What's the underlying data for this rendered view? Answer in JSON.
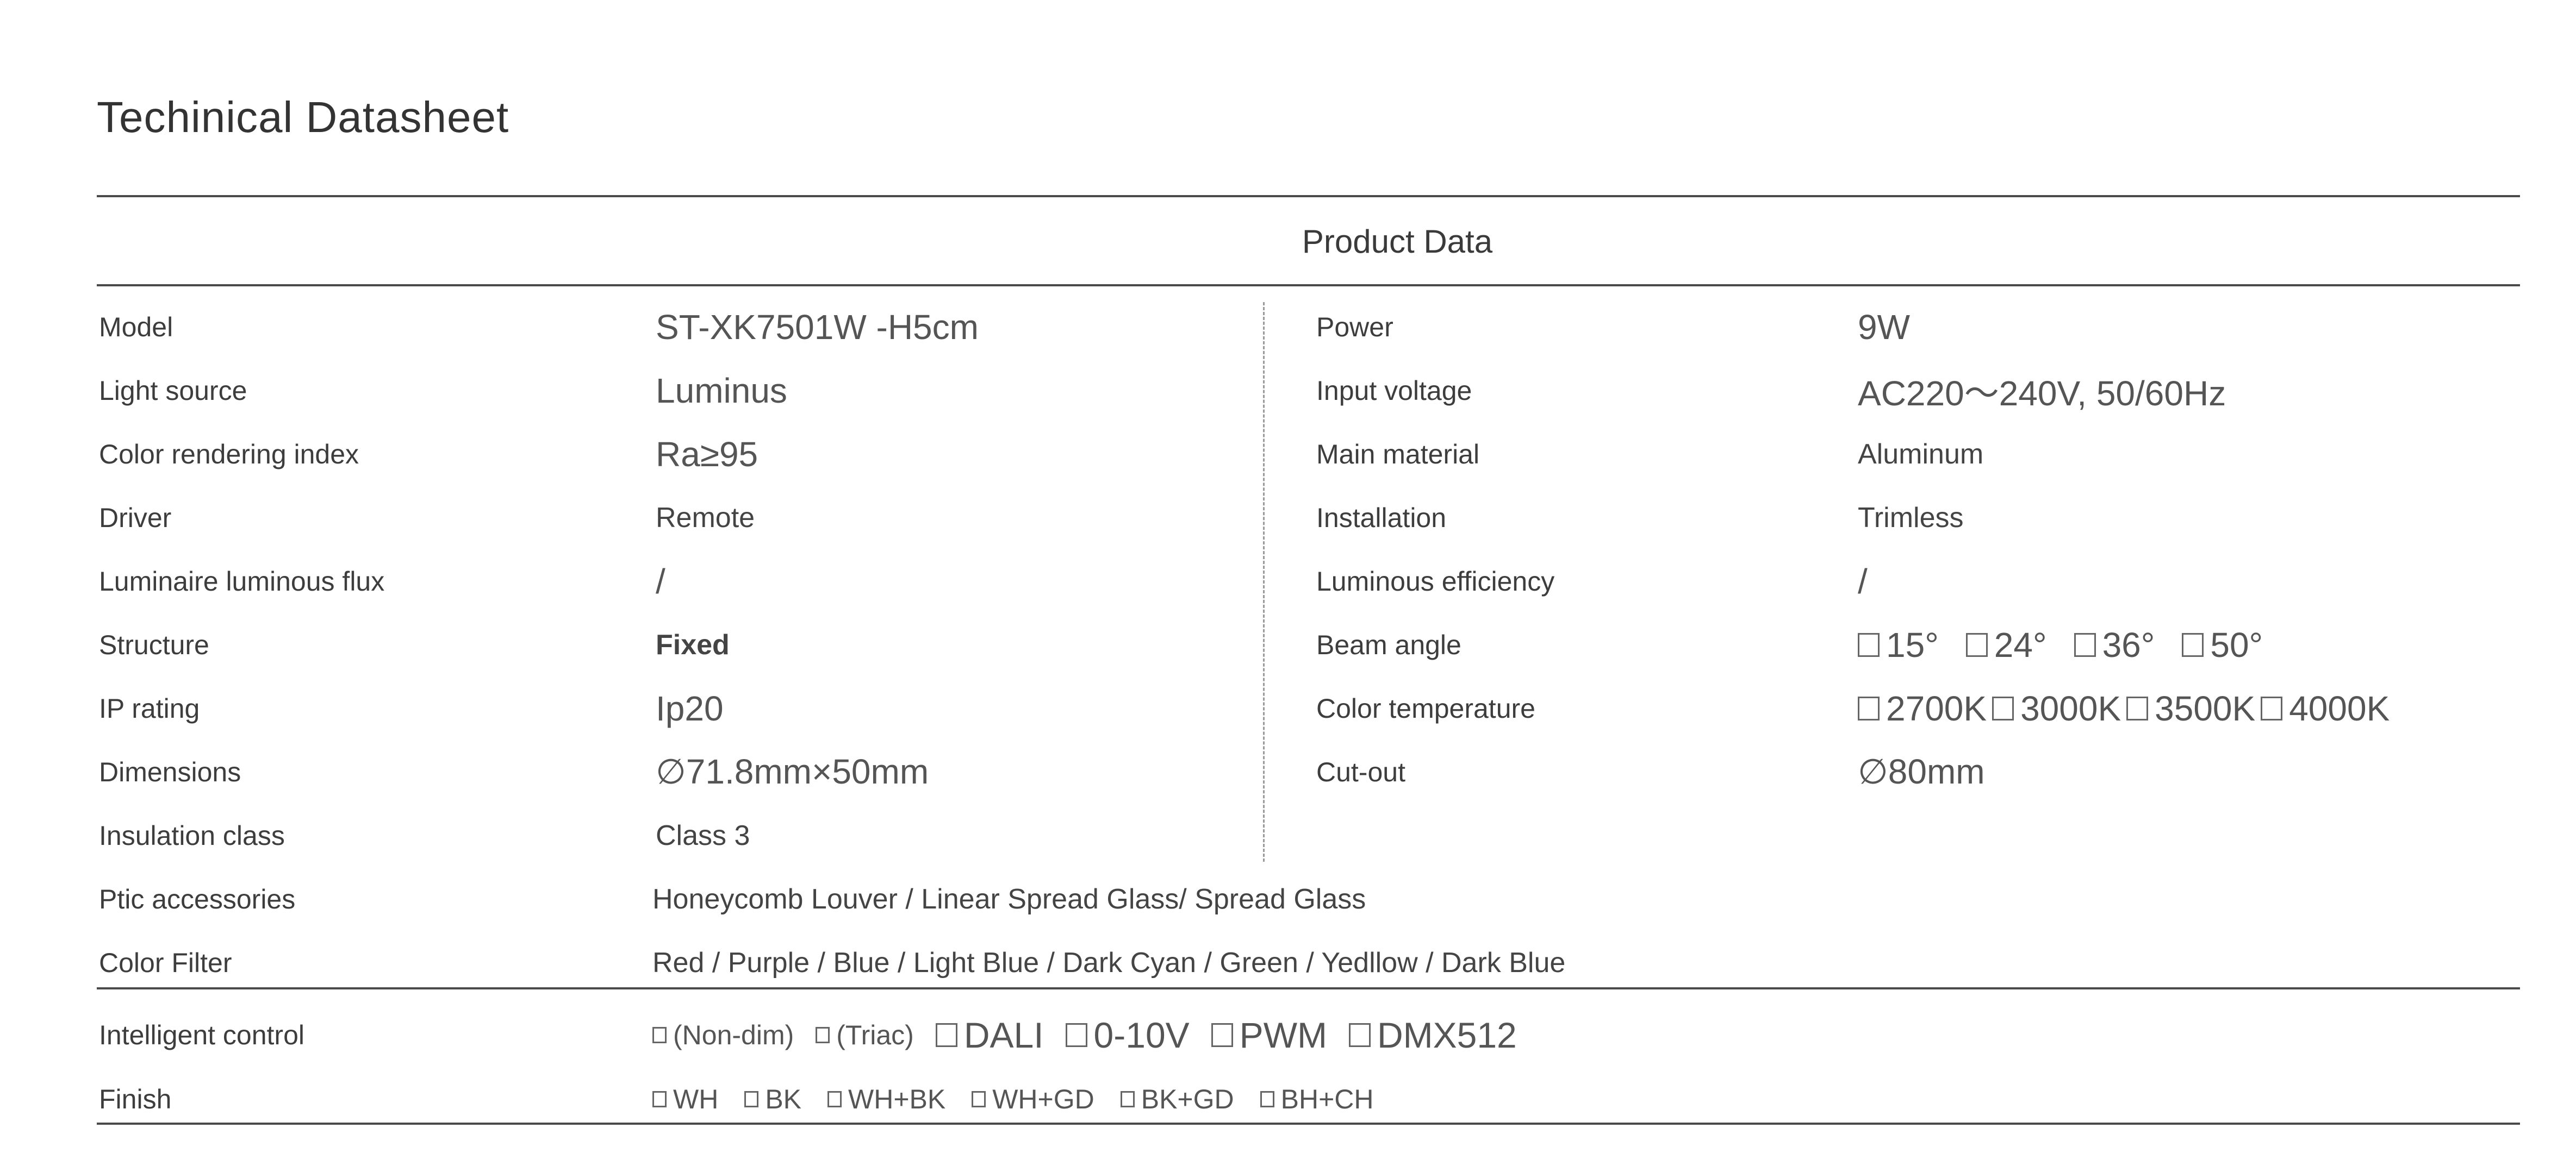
{
  "header": {
    "title": "Techinical Datasheet",
    "section": "Product Data"
  },
  "left": [
    {
      "label": "Model",
      "value": "ST-XK7501W -H5cm",
      "style": "big"
    },
    {
      "label": "Light source",
      "value": "Luminus",
      "style": "big"
    },
    {
      "label": "Color rendering index",
      "value": "Ra≥95",
      "style": "big"
    },
    {
      "label": "Driver",
      "value": "Remote",
      "style": "normal"
    },
    {
      "label": "Luminaire luminous flux",
      "value": "/",
      "style": "big"
    },
    {
      "label": "Structure",
      "value": "Fixed",
      "style": "bold"
    },
    {
      "label": "IP  rating",
      "value": "Ip20",
      "style": "big"
    },
    {
      "label": "Dimensions",
      "value": "∅71.8mm×50mm",
      "style": "big"
    },
    {
      "label": "Insulation class",
      "value": "Class 3",
      "style": "normal"
    }
  ],
  "right": [
    {
      "label": "Power",
      "value": "9W",
      "style": "big"
    },
    {
      "label": "Input voltage",
      "value": "AC220～240V, 50/60Hz",
      "style": "big"
    },
    {
      "label": "Main material",
      "value": "Aluminum",
      "style": "normal"
    },
    {
      "label": "Installation",
      "value": "Trimless",
      "style": "normal"
    },
    {
      "label": "Luminous efficiency",
      "value": "/",
      "style": "big"
    }
  ],
  "beam_angle": {
    "label": "Beam angle",
    "options": [
      "15°",
      "24°",
      "36°",
      "50°"
    ]
  },
  "color_temperature": {
    "label": "Color temperature",
    "options": [
      "2700K",
      "3000K",
      "3500K",
      "4000K"
    ]
  },
  "cut_out": {
    "label": "Cut-out",
    "value": "∅80mm"
  },
  "full_rows": [
    {
      "label": "Ptic accessories",
      "value": "Honeycomb Louver / Linear Spread Glass/   Spread Glass"
    },
    {
      "label": "Color Filter",
      "value": "Red /  Purple  /  Blue  /  Light Blue  / Dark Cyan /  Green  / Yedllow  / Dark Blue"
    }
  ],
  "intelligent_control": {
    "label": "Intelligent control",
    "options": [
      {
        "text": "(Non-dim)",
        "size": "sm"
      },
      {
        "text": "(Triac)",
        "size": "sm"
      },
      {
        "text": "DALI",
        "size": "lg"
      },
      {
        "text": "0-10V",
        "size": "lg"
      },
      {
        "text": "PWM",
        "size": "lg"
      },
      {
        "text": "DMX512",
        "size": "lg"
      }
    ]
  },
  "finish": {
    "label": "Finish",
    "options": [
      "WH",
      "BK",
      "WH+BK",
      "WH+GD",
      "BK+GD",
      "BH+CH"
    ]
  }
}
